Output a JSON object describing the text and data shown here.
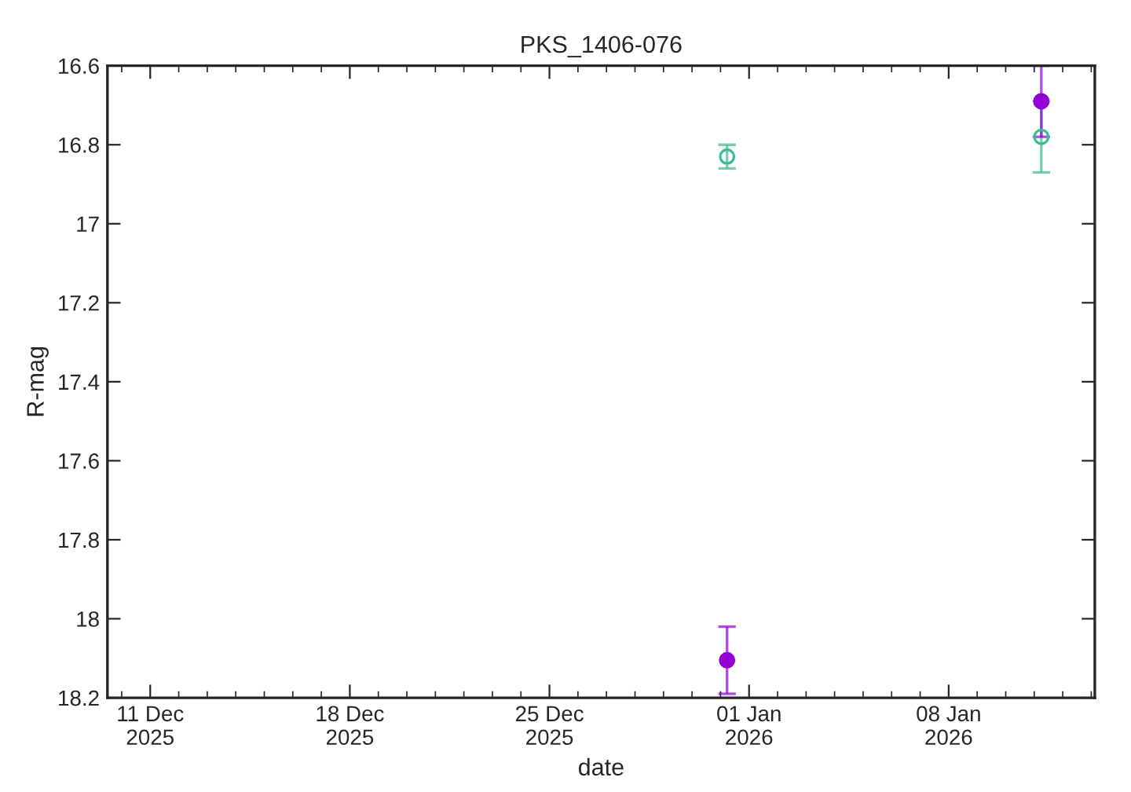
{
  "chart_data": {
    "type": "scatter",
    "title": "PKS_1406-076",
    "xlabel": "date",
    "ylabel": "R-mag",
    "x": [
      "2025-12-31T05:30",
      "2026-01-11T06:00"
    ],
    "series": [
      {
        "color": "#3cbc96",
        "values": [
          16.83,
          16.78
        ],
        "errors": [
          0.03,
          0.09
        ]
      },
      {
        "color": "#9400d3",
        "values": [
          18.105,
          16.69
        ],
        "errors": [
          0.085,
          0.09
        ]
      }
    ],
    "xlim": [
      "2025-12-09T12:00",
      "2026-01-13T03:00"
    ],
    "xticks": [
      {
        "value": "2025-12-11",
        "label": "11 Dec\n2025"
      },
      {
        "value": "2025-12-18",
        "label": "18 Dec\n2025"
      },
      {
        "value": "2025-12-25",
        "label": "25 Dec\n2025"
      },
      {
        "value": "2026-01-01",
        "label": "01 Jan\n2026"
      },
      {
        "value": "2026-01-08",
        "label": "08 Jan\n2026"
      }
    ],
    "ylim": [
      18.2,
      16.6
    ],
    "yticks": [
      16.6,
      16.8,
      17,
      17.2,
      17.4,
      17.6,
      17.8,
      18,
      18.2
    ],
    "marker": "circle",
    "grid": false,
    "legend": false
  }
}
